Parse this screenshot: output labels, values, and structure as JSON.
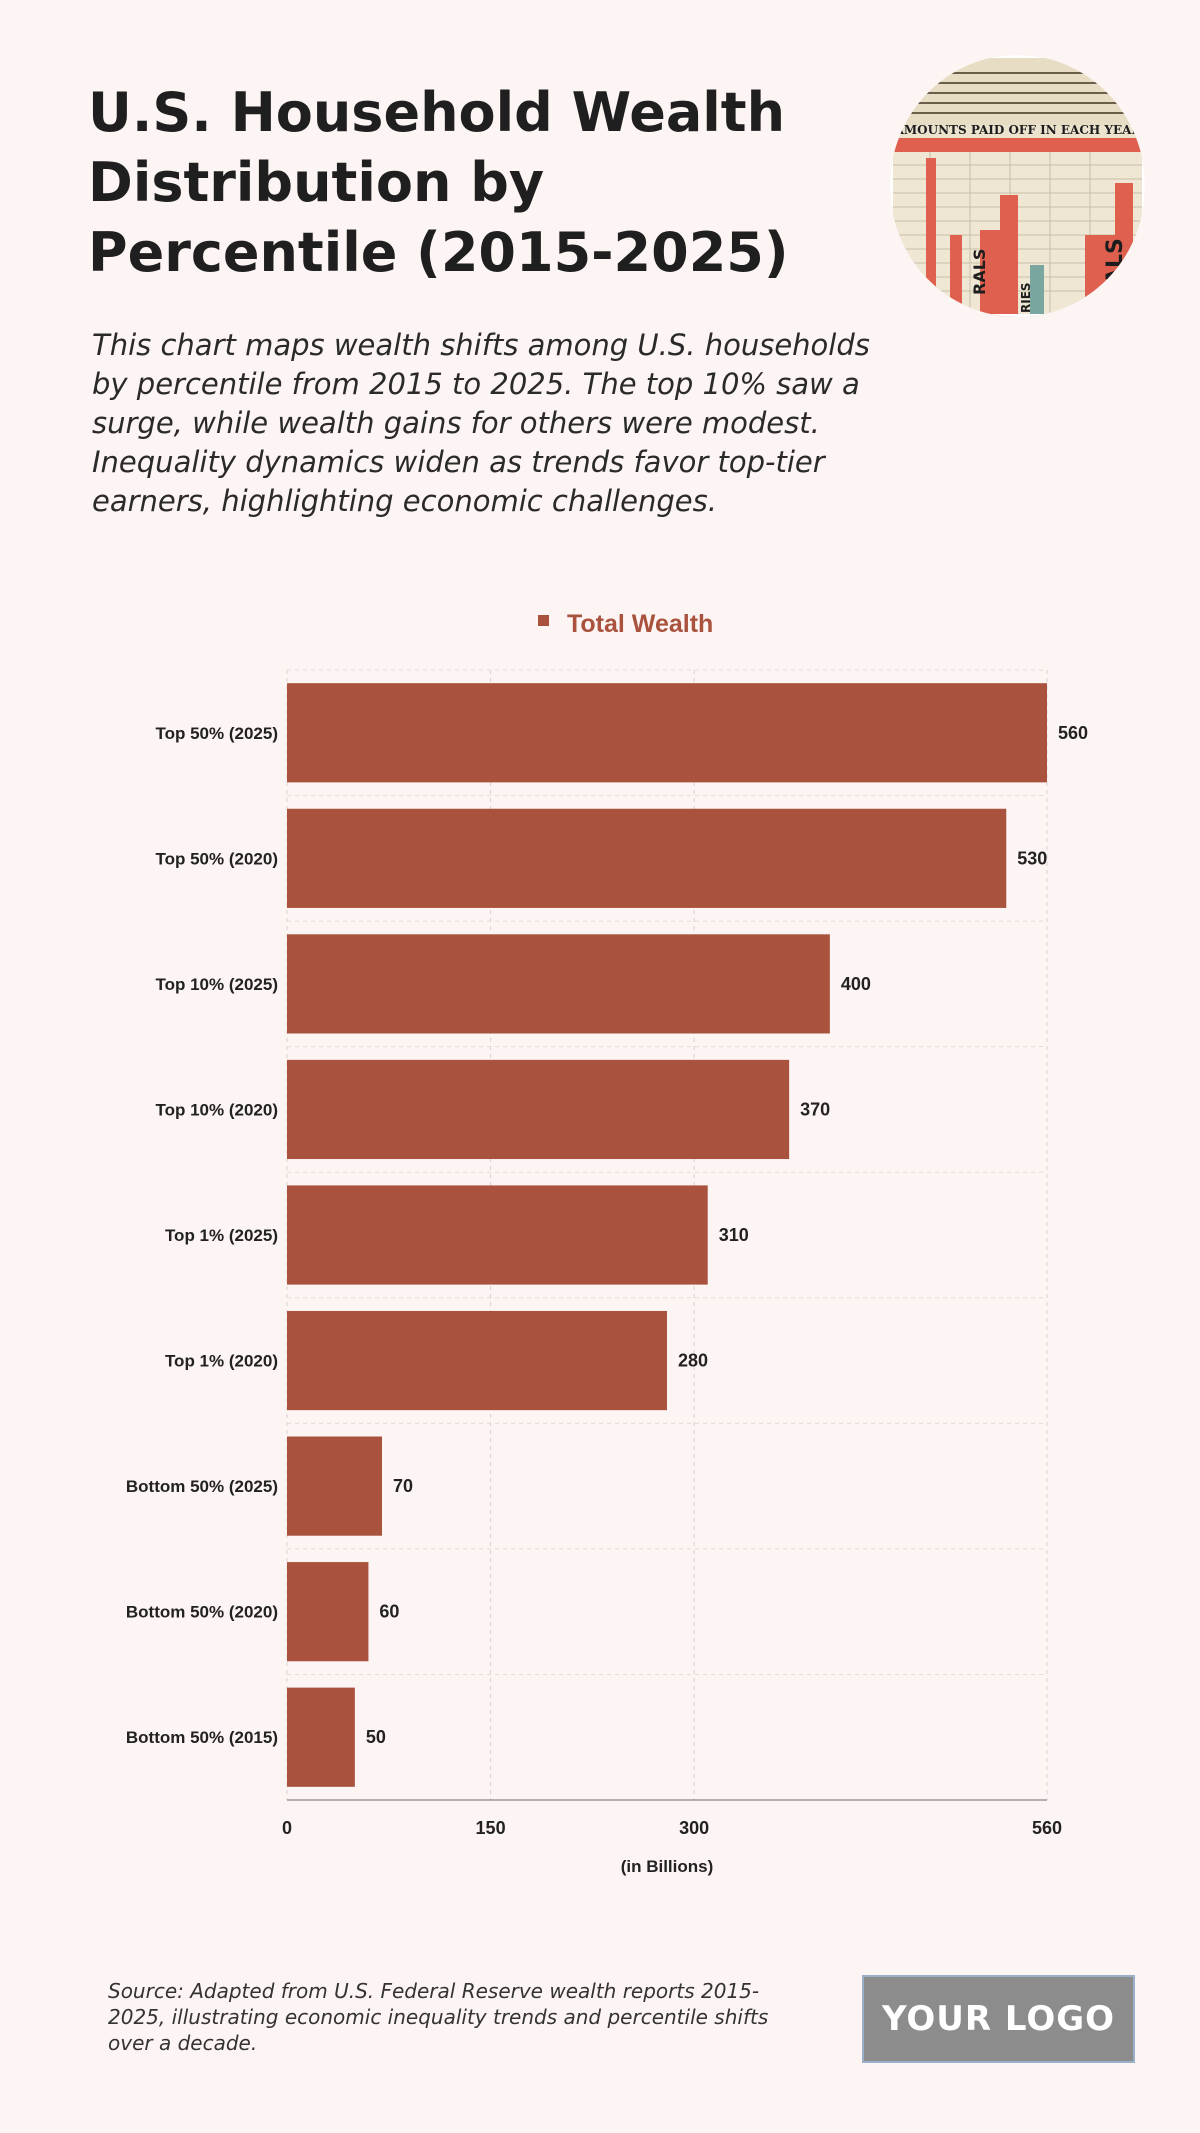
{
  "header": {
    "title": "U.S. Household Wealth Distribution by Percentile (2015-2025)",
    "subtitle": "This chart maps wealth shifts among U.S. households by percentile from 2015 to 2025. The top 10% saw a surge, while wealth gains for others were modest. Inequality dynamics widen as trends favor top-tier earners, highlighting economic challenges."
  },
  "photo": {
    "icon": "vintage-chart-photo",
    "text_lines": [
      "AMOUNTS PAID OFF IN EACH YEAR",
      "RALS",
      "RIES",
      "ALS"
    ]
  },
  "chart_data": {
    "type": "bar",
    "orientation": "horizontal",
    "categories": [
      "Top 50% (2025)",
      "Top 50% (2020)",
      "Top 10% (2025)",
      "Top 10% (2020)",
      "Top 1% (2025)",
      "Top 1% (2020)",
      "Bottom 50% (2025)",
      "Bottom 50% (2020)",
      "Bottom 50% (2015)"
    ],
    "series": [
      {
        "name": "Total Wealth",
        "values": [
          560,
          530,
          400,
          370,
          310,
          280,
          70,
          60,
          50
        ]
      }
    ],
    "xlabel": "(in Billions)",
    "xlim": [
      0,
      560
    ],
    "xticks": [
      0,
      150,
      300,
      560
    ],
    "grid": true,
    "legend": "top-center",
    "bar_color": "#a9523d"
  },
  "footer": {
    "source": "Source: Adapted from U.S. Federal Reserve wealth reports 2015-2025, illustrating economic inequality trends and percentile shifts over a decade.",
    "logo": "YOUR LOGO"
  }
}
